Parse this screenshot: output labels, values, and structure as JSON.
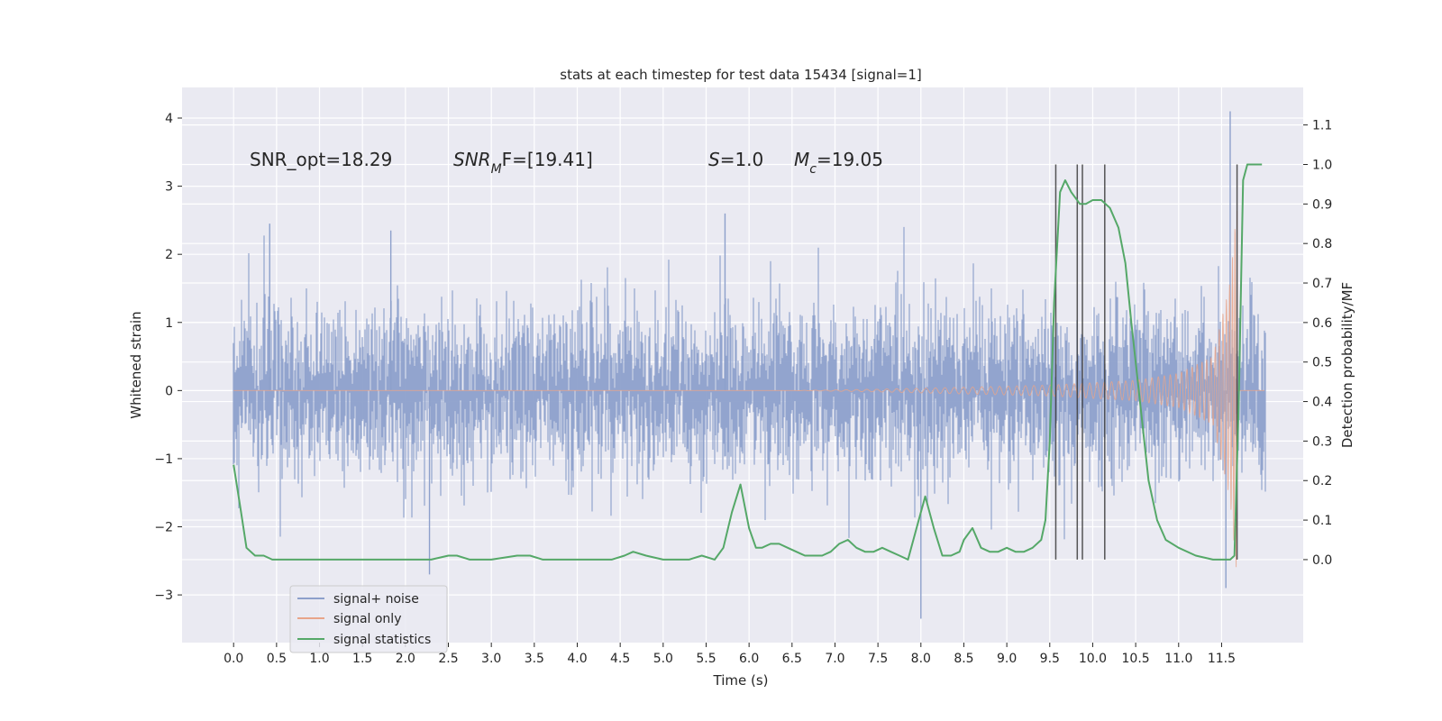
{
  "chart_data": {
    "type": "line",
    "title": "stats at each timestep for test data 15434 [signal=1]",
    "xlabel": "Time (s)",
    "ylabel_left": "Whitened strain",
    "ylabel_right": "Detection probability/MF",
    "xlim": [
      -0.6,
      12.45
    ],
    "ylim_left": [
      -3.7,
      4.45
    ],
    "ylim_right": [
      -0.21,
      1.195
    ],
    "x_ticks": [
      "0.0",
      "0.5",
      "1.0",
      "1.5",
      "2.0",
      "2.5",
      "3.0",
      "3.5",
      "4.0",
      "4.5",
      "5.0",
      "5.5",
      "6.0",
      "6.5",
      "7.0",
      "7.5",
      "8.0",
      "8.5",
      "9.0",
      "9.5",
      "10.0",
      "10.5",
      "11.0",
      "11.5"
    ],
    "y_ticks_left": [
      "4",
      "3",
      "2",
      "1",
      "0",
      "−1",
      "−2",
      "−3"
    ],
    "y_ticks_right": [
      "1.1",
      "1.0",
      "0.9",
      "0.8",
      "0.7",
      "0.6",
      "0.5",
      "0.4",
      "0.3",
      "0.2",
      "0.1",
      "0.0"
    ],
    "grid": true,
    "legend_placement": "lower-left",
    "annotations": {
      "snr_opt": "SNR_opt=18.29",
      "snr_mf_sym": "SNR",
      "snr_mf_sub": "M",
      "snr_mf_rest": "F=[19.41]",
      "s_sym": "S",
      "s_rest": "=1.0",
      "mc_sym": "M",
      "mc_sub": "c",
      "mc_rest": "=19.05"
    },
    "series": [
      {
        "name": "signal+ noise",
        "color": "#8da0cb",
        "x_range": [
          0.0,
          12.0
        ],
        "envelope_upper_typical": 1.5,
        "envelope_lower_typical": -1.5,
        "peaks": [
          {
            "x": 0.42,
            "y": 2.45
          },
          {
            "x": 1.83,
            "y": 2.35
          },
          {
            "x": 2.28,
            "y": -2.7
          },
          {
            "x": 5.72,
            "y": 2.6
          },
          {
            "x": 8.0,
            "y": -3.35
          },
          {
            "x": 11.6,
            "y": 4.1
          },
          {
            "x": 11.55,
            "y": -2.9
          }
        ]
      },
      {
        "name": "signal only",
        "color": "#e8a58a",
        "description_points": [
          {
            "x": 7.5,
            "amp": 0.02
          },
          {
            "x": 8.5,
            "amp": 0.05
          },
          {
            "x": 9.5,
            "amp": 0.08
          },
          {
            "x": 10.5,
            "amp": 0.15
          },
          {
            "x": 11.0,
            "amp": 0.25
          },
          {
            "x": 11.4,
            "amp": 0.5
          },
          {
            "x": 11.6,
            "amp": 1.6
          },
          {
            "x": 11.68,
            "amp": 2.8
          }
        ]
      },
      {
        "name": "signal statistics",
        "color": "#55a868",
        "x": [
          0.0,
          0.08,
          0.15,
          0.25,
          0.35,
          0.45,
          0.55,
          0.7,
          0.9,
          1.2,
          1.5,
          1.8,
          2.1,
          2.3,
          2.5,
          2.6,
          2.75,
          3.0,
          3.3,
          3.45,
          3.6,
          3.9,
          4.2,
          4.4,
          4.55,
          4.65,
          4.8,
          5.0,
          5.3,
          5.45,
          5.6,
          5.7,
          5.8,
          5.9,
          6.0,
          6.08,
          6.15,
          6.25,
          6.35,
          6.45,
          6.55,
          6.65,
          6.75,
          6.85,
          6.95,
          7.05,
          7.15,
          7.25,
          7.35,
          7.45,
          7.55,
          7.65,
          7.75,
          7.85,
          7.95,
          8.05,
          8.15,
          8.25,
          8.35,
          8.45,
          8.5,
          8.6,
          8.7,
          8.8,
          8.9,
          9.0,
          9.1,
          9.2,
          9.3,
          9.4,
          9.45,
          9.5,
          9.55,
          9.62,
          9.68,
          9.75,
          9.85,
          9.92,
          10.0,
          10.1,
          10.2,
          10.3,
          10.38,
          10.45,
          10.55,
          10.65,
          10.75,
          10.85,
          11.0,
          11.2,
          11.4,
          11.5,
          11.6,
          11.65,
          11.7,
          11.75,
          11.8,
          11.9,
          11.97
        ],
        "y": [
          0.24,
          0.13,
          0.03,
          0.01,
          0.01,
          0.0,
          0.0,
          0.0,
          0.0,
          0.0,
          0.0,
          0.0,
          0.0,
          0.0,
          0.01,
          0.01,
          0.0,
          0.0,
          0.01,
          0.01,
          0.0,
          0.0,
          0.0,
          0.0,
          0.01,
          0.02,
          0.01,
          0.0,
          0.0,
          0.01,
          0.0,
          0.03,
          0.12,
          0.19,
          0.08,
          0.03,
          0.03,
          0.04,
          0.04,
          0.03,
          0.02,
          0.01,
          0.01,
          0.01,
          0.02,
          0.04,
          0.05,
          0.03,
          0.02,
          0.02,
          0.03,
          0.02,
          0.01,
          0.0,
          0.08,
          0.16,
          0.08,
          0.01,
          0.01,
          0.02,
          0.05,
          0.08,
          0.03,
          0.02,
          0.02,
          0.03,
          0.02,
          0.02,
          0.03,
          0.05,
          0.1,
          0.3,
          0.65,
          0.93,
          0.96,
          0.93,
          0.9,
          0.9,
          0.91,
          0.91,
          0.89,
          0.84,
          0.75,
          0.6,
          0.4,
          0.2,
          0.1,
          0.05,
          0.03,
          0.01,
          0.0,
          0.0,
          0.0,
          0.01,
          0.4,
          0.96,
          1.0,
          1.0,
          1.0
        ]
      }
    ],
    "vertical_lines_x": [
      9.57,
      9.82,
      9.88,
      10.14,
      11.68
    ],
    "vertical_lines_range_right": [
      0.0,
      1.0
    ]
  }
}
